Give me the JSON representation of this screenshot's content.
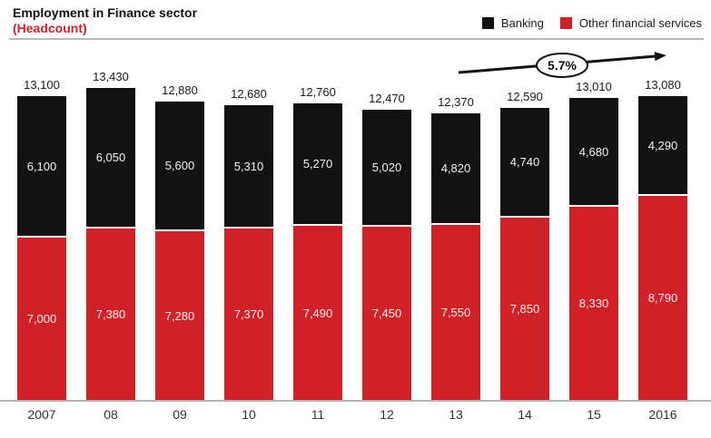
{
  "header": {
    "title": "Employment in Finance sector",
    "subtitle": "(Headcount)"
  },
  "legend": [
    {
      "label": "Banking",
      "color": "#121212"
    },
    {
      "label": "Other financial services",
      "color": "#d02028"
    }
  ],
  "annotation": {
    "growth_label": "5.7%"
  },
  "colors": {
    "banking": "#121212",
    "other": "#d02028",
    "subtitle_red": "#d02028",
    "axis_gray": "#b3b3b3"
  },
  "chart_data": {
    "type": "bar",
    "stacked": true,
    "title": "Employment in Finance sector",
    "ylabel": "Headcount",
    "categories": [
      "2007",
      "08",
      "09",
      "10",
      "11",
      "12",
      "13",
      "14",
      "15",
      "2016"
    ],
    "series": [
      {
        "name": "Other financial services",
        "color": "#d02028",
        "values": [
          7000,
          7380,
          7280,
          7370,
          7490,
          7450,
          7550,
          7850,
          8330,
          8790
        ]
      },
      {
        "name": "Banking",
        "color": "#121212",
        "values": [
          6100,
          6050,
          5600,
          5310,
          5270,
          5020,
          4820,
          4740,
          4680,
          4290
        ]
      }
    ],
    "totals": [
      13100,
      13430,
      12880,
      12680,
      12760,
      12470,
      12370,
      12590,
      13010,
      13080
    ],
    "ylim": [
      0,
      13430
    ],
    "grid": false,
    "legend_position": "top-right",
    "annotation_arrow": {
      "label": "5.7%",
      "direction": "up-right"
    }
  }
}
